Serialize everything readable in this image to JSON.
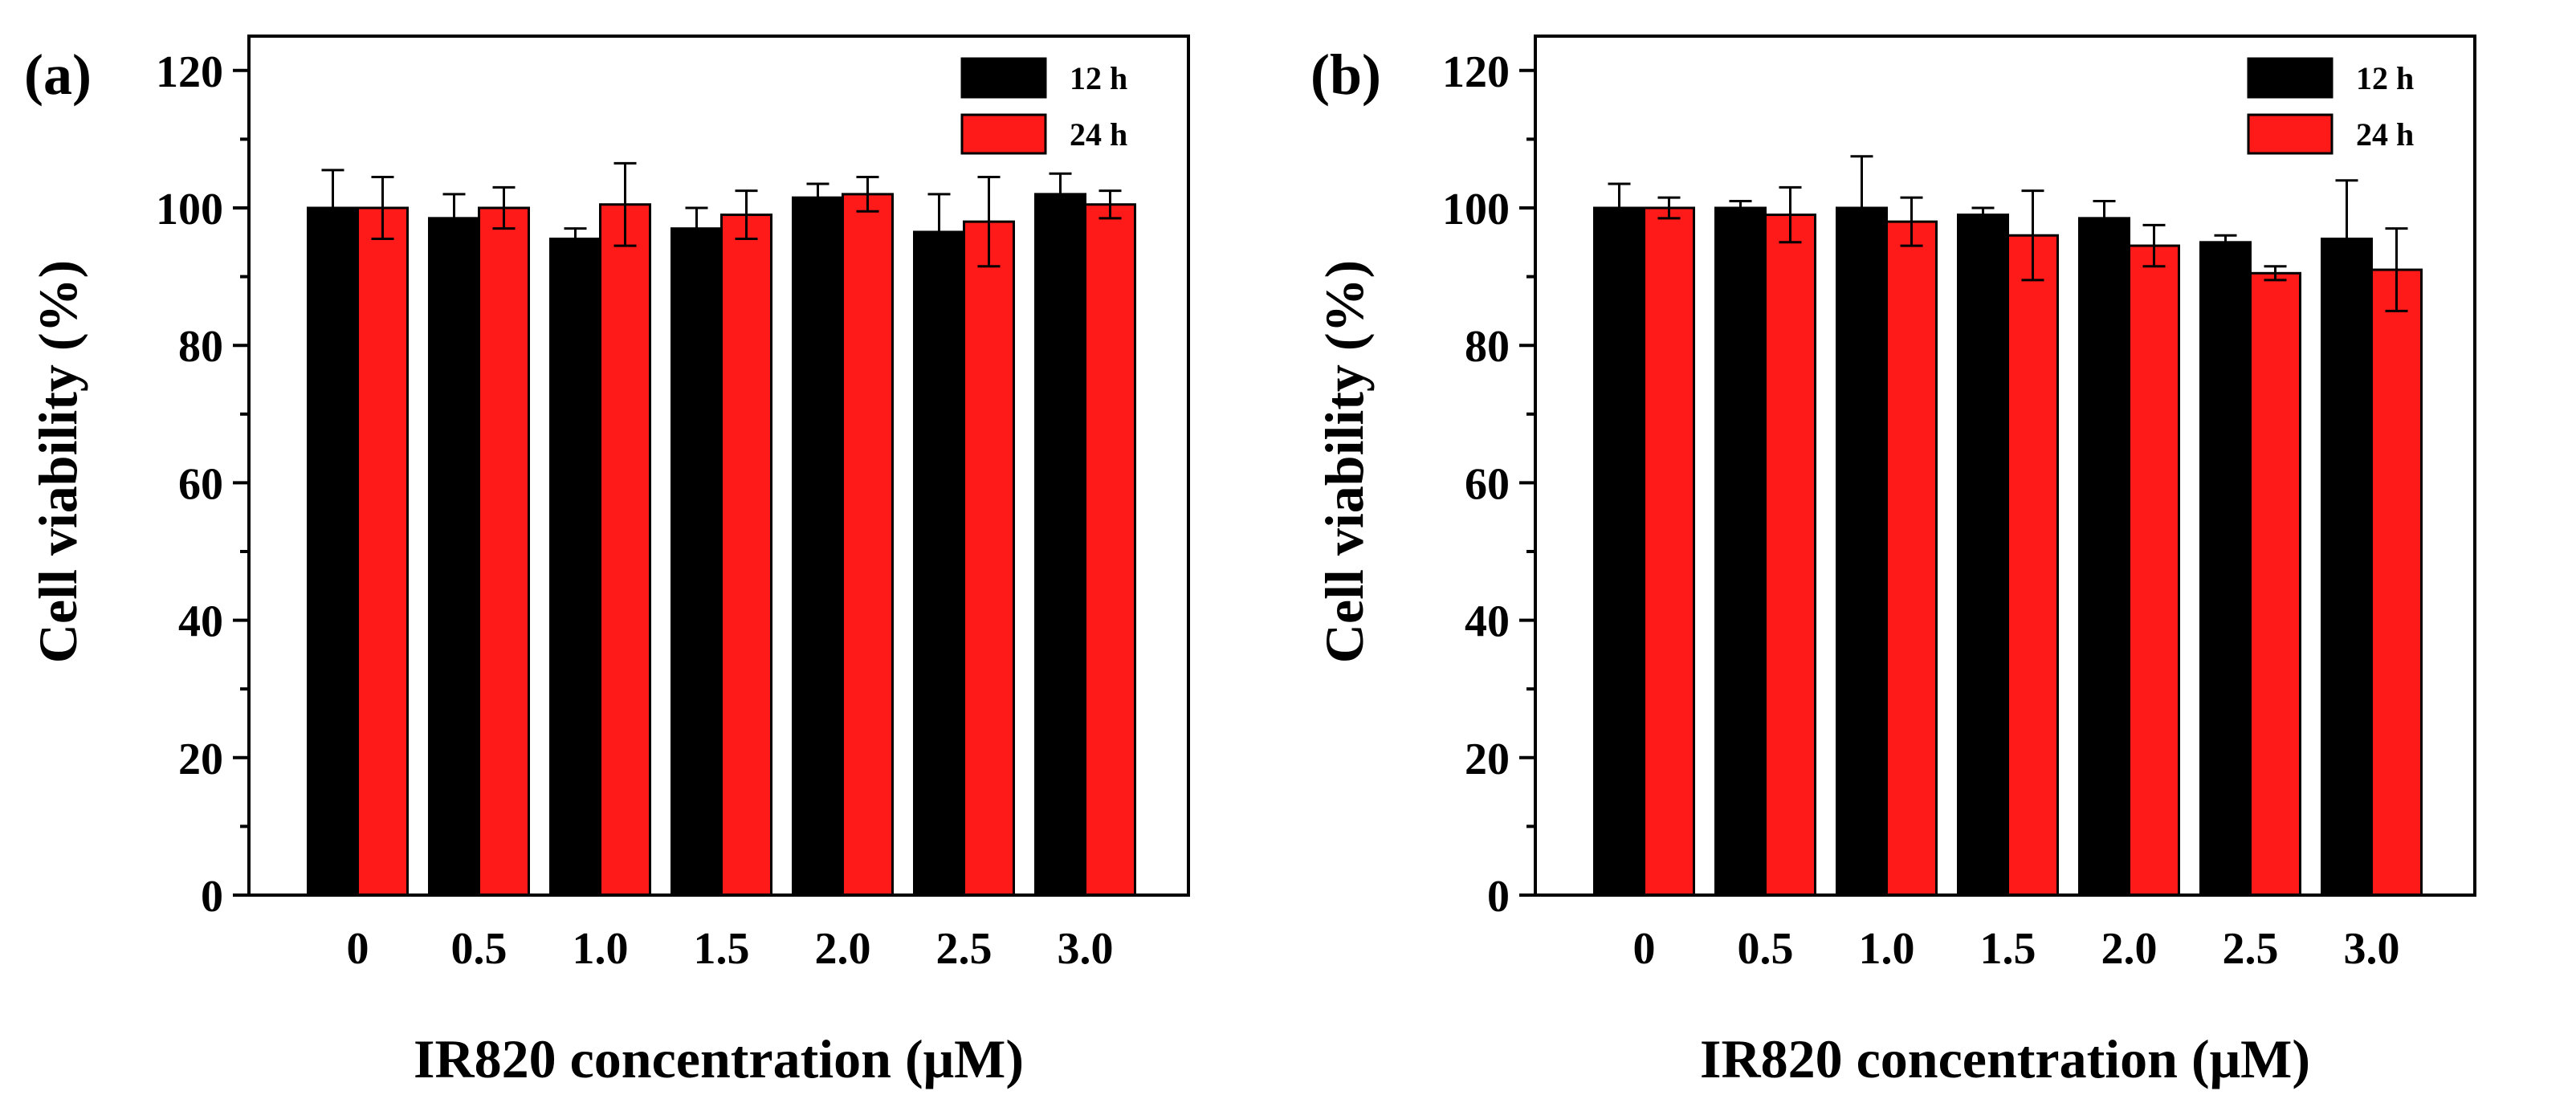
{
  "colors": {
    "series_12h": "#000000",
    "series_24h": "#ff1a1a"
  },
  "chart_data": [
    {
      "type": "bar",
      "panel_label": "(a)",
      "xlabel": "IR820 concentration (μM)",
      "ylabel": "Cell viability (%)",
      "ylim": [
        0,
        125
      ],
      "yticks": [
        0,
        20,
        40,
        60,
        80,
        100,
        120
      ],
      "categories": [
        "0",
        "0.5",
        "1.0",
        "1.5",
        "2.0",
        "2.5",
        "3.0"
      ],
      "legend_position": "top-right",
      "series": [
        {
          "name": "12 h",
          "values": [
            100.0,
            98.5,
            95.5,
            97.0,
            101.5,
            96.5,
            102.0
          ],
          "errors": [
            5.5,
            3.5,
            1.5,
            3.0,
            2.0,
            5.5,
            3.0
          ]
        },
        {
          "name": "24 h",
          "values": [
            100.0,
            100.0,
            100.5,
            99.0,
            102.0,
            98.0,
            100.5
          ],
          "errors": [
            4.5,
            3.0,
            6.0,
            3.5,
            2.5,
            6.5,
            2.0
          ]
        }
      ]
    },
    {
      "type": "bar",
      "panel_label": "(b)",
      "xlabel": "IR820 concentration (μM)",
      "ylabel": "Cell viability (%)",
      "ylim": [
        0,
        125
      ],
      "yticks": [
        0,
        20,
        40,
        60,
        80,
        100,
        120
      ],
      "categories": [
        "0",
        "0.5",
        "1.0",
        "1.5",
        "2.0",
        "2.5",
        "3.0"
      ],
      "legend_position": "top-right",
      "series": [
        {
          "name": "12 h",
          "values": [
            100.0,
            100.0,
            100.0,
            99.0,
            98.5,
            95.0,
            95.5
          ],
          "errors": [
            3.5,
            1.0,
            7.5,
            1.0,
            2.5,
            1.0,
            8.5
          ]
        },
        {
          "name": "24 h",
          "values": [
            100.0,
            99.0,
            98.0,
            96.0,
            94.5,
            90.5,
            91.0
          ],
          "errors": [
            1.5,
            4.0,
            3.5,
            6.5,
            3.0,
            1.0,
            6.0
          ]
        }
      ]
    }
  ]
}
